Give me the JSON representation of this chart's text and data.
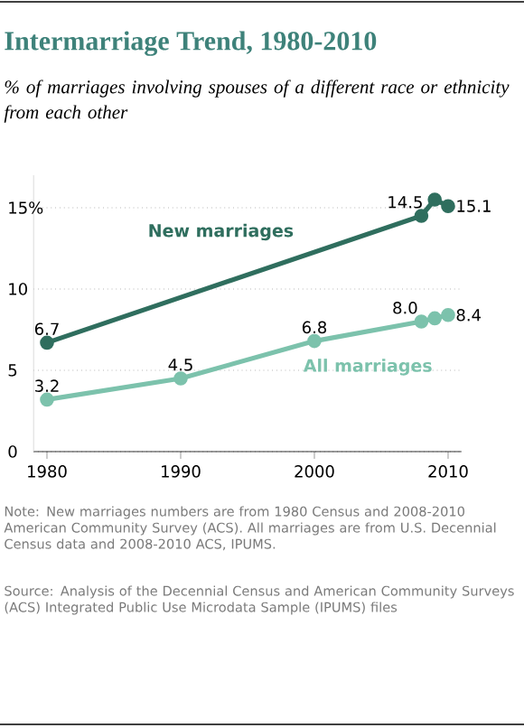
{
  "chart_data": {
    "type": "line",
    "title": "Intermarriage Trend, 1980-2010",
    "subtitle": "% of marriages involving spouses of a different race or ethnicity from each other",
    "x": [
      1980,
      1990,
      2000,
      2008,
      2009,
      2010
    ],
    "series": [
      {
        "name": "New marriages",
        "color": "#2f6e5e",
        "x": [
          1980,
          2008,
          2009,
          2010
        ],
        "values": [
          6.7,
          14.5,
          15.5,
          15.1
        ],
        "value_labels": [
          "6.7",
          "14.5",
          null,
          "15.1"
        ]
      },
      {
        "name": "All marriages",
        "color": "#7cc2ac",
        "values": [
          3.2,
          4.5,
          6.8,
          8.0,
          8.2,
          8.4
        ],
        "value_labels": [
          "3.2",
          "4.5",
          "6.8",
          "8.0",
          null,
          "8.4"
        ]
      }
    ],
    "xlim": [
      1979,
      2011
    ],
    "xticks": [
      1980,
      1990,
      2000,
      2010
    ],
    "ylim": [
      0,
      17
    ],
    "yticks": [
      0,
      5,
      10,
      {
        "value": 15,
        "label": "15%"
      }
    ],
    "grid": "y",
    "marker": "circle",
    "line_style": "solid",
    "annotations": [
      "Note: New marriages numbers are from 1980 Census and 2008-2010 American Community Survey (ACS). All marriages are from U.S. Decennial Census data and 2008-2010 ACS, IPUMS.",
      "Source: Analysis of the Decennial Census and American Community Surveys (ACS) Integrated Public Use Microdata Sample (IPUMS) files"
    ]
  }
}
